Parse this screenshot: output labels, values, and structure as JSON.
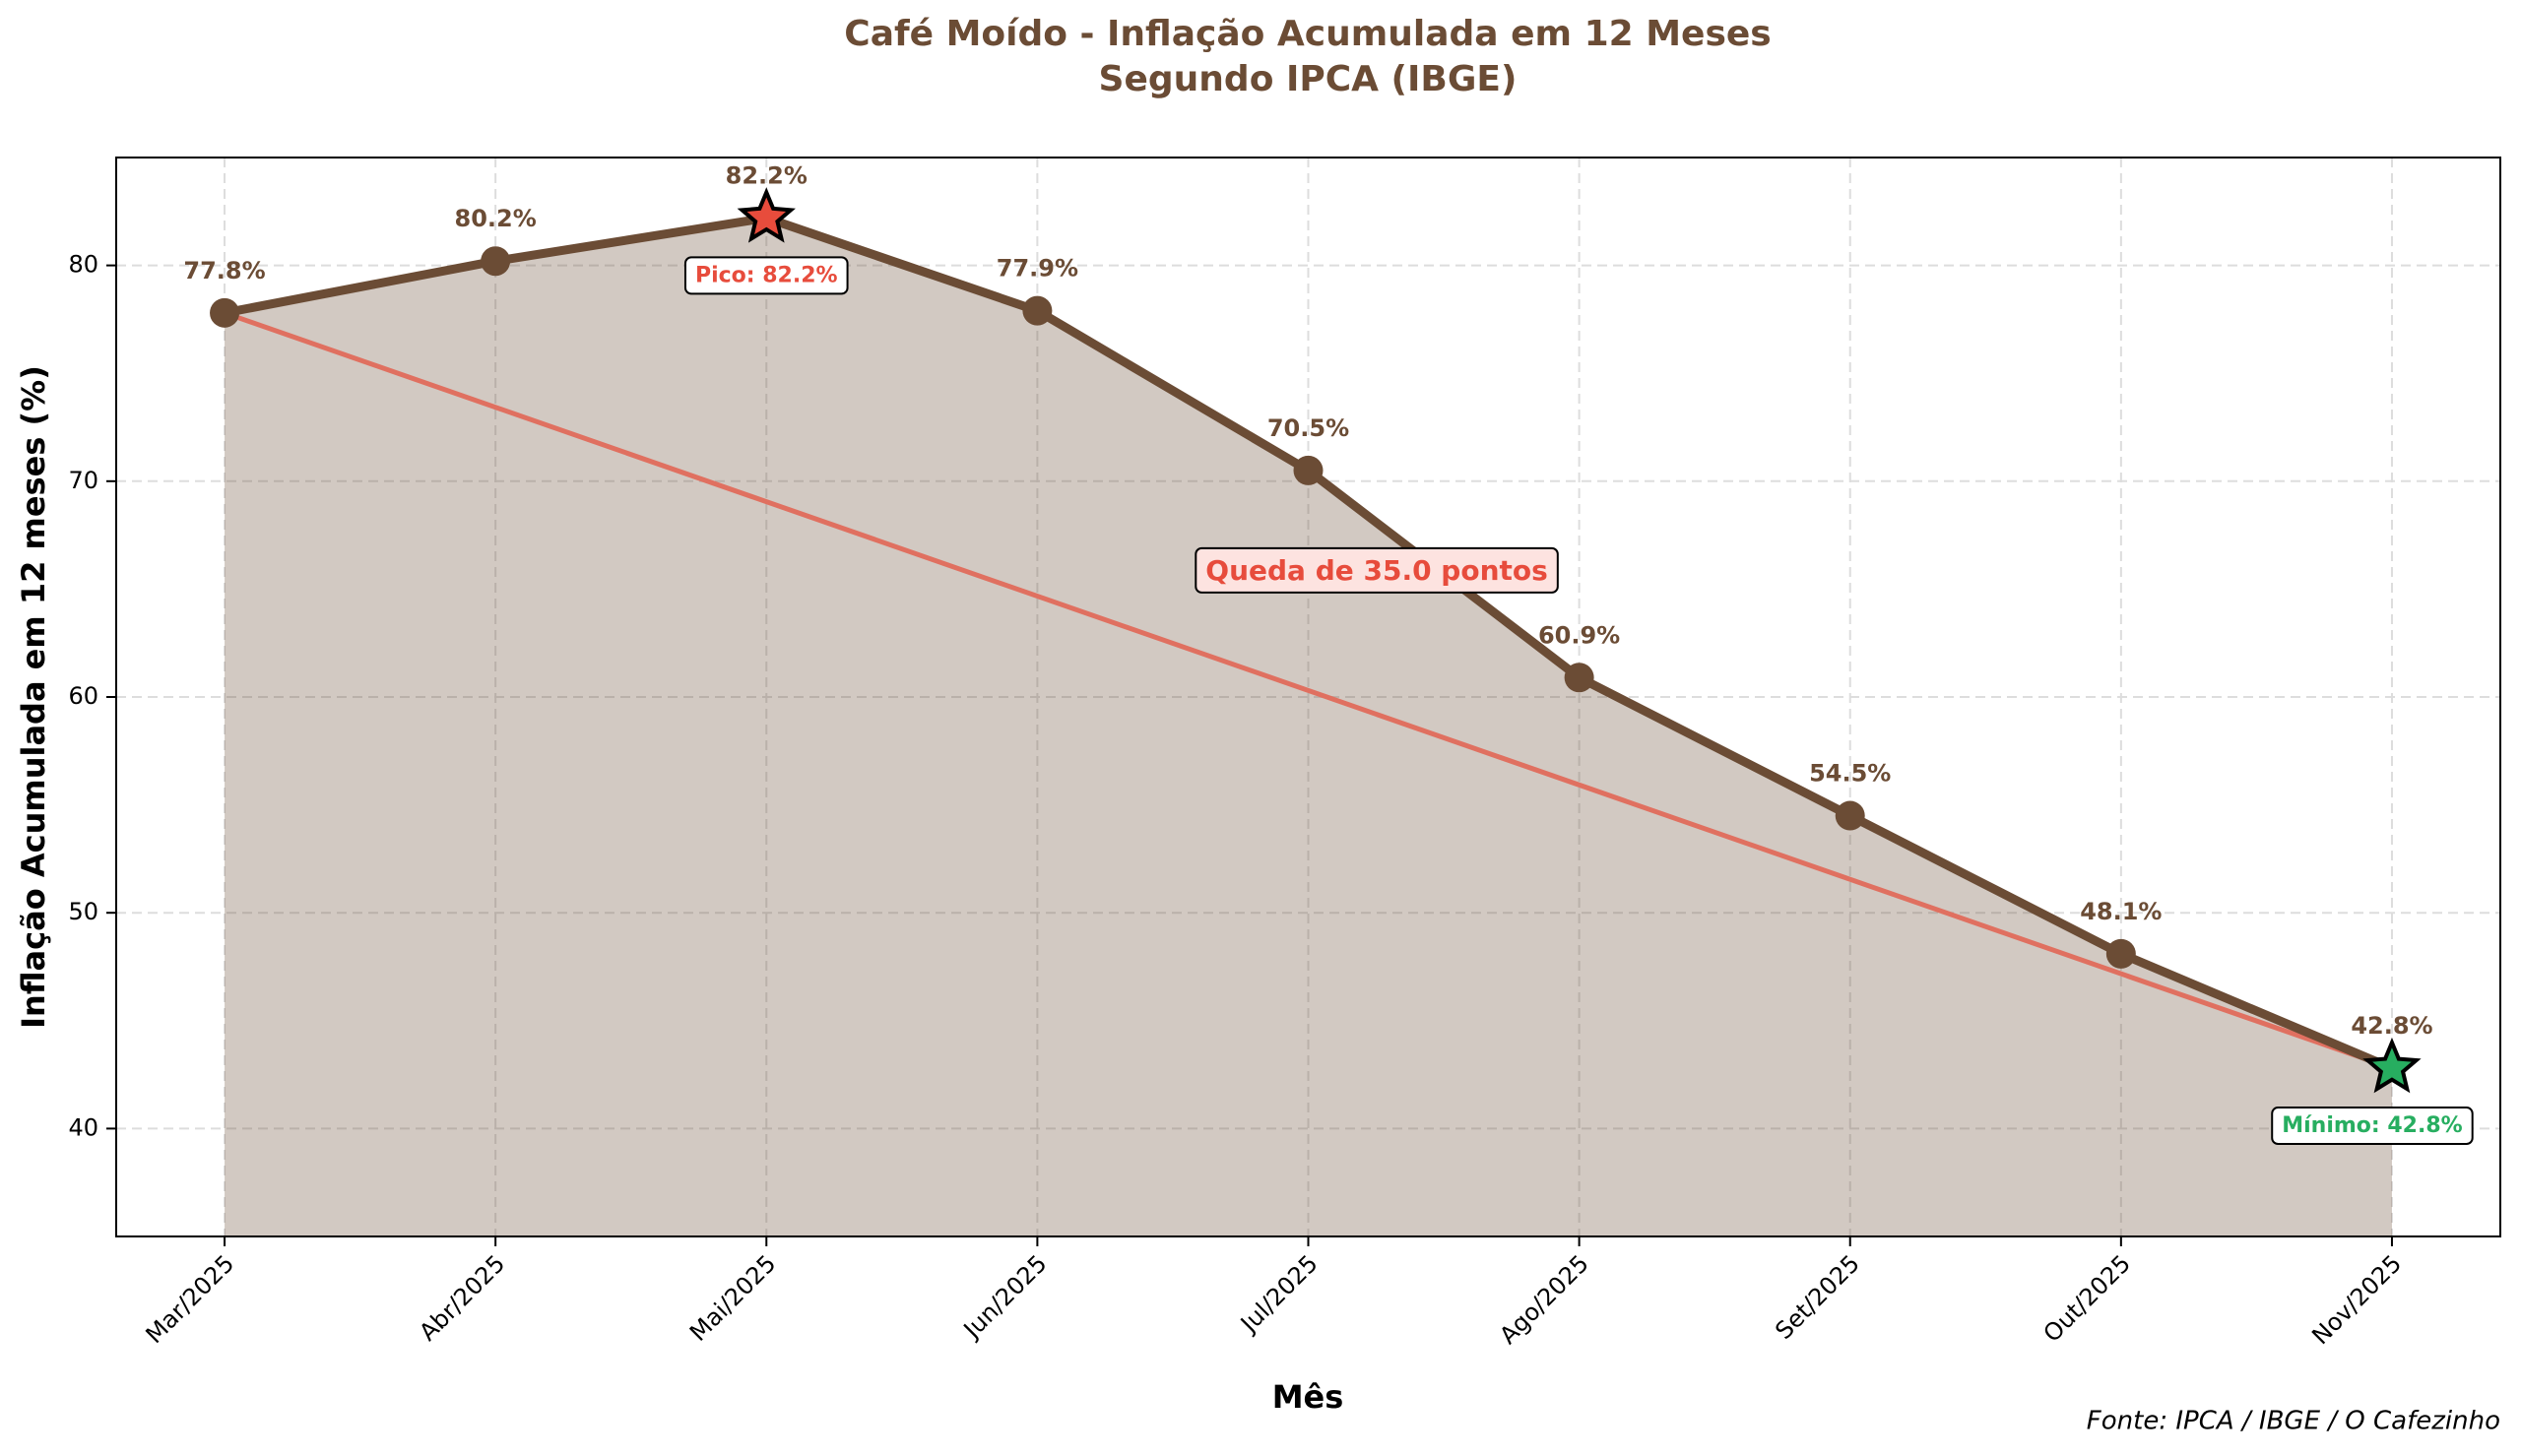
{
  "chart_data": {
    "type": "line",
    "title": "Café Moído - Inflação Acumulada em 12 Meses",
    "subtitle": "Segundo IPCA (IBGE)",
    "x_label": "Mês",
    "y_label": "Inflação Acumulada em 12 meses (%)",
    "source": "Fonte: IPCA / IBGE / O Cafezinho",
    "categories": [
      "Mar/2025",
      "Abr/2025",
      "Mai/2025",
      "Jun/2025",
      "Jul/2025",
      "Ago/2025",
      "Set/2025",
      "Out/2025",
      "Nov/2025"
    ],
    "series": [
      {
        "name": "Café Moído",
        "color": "#6b4c35",
        "values": [
          77.8,
          80.2,
          82.2,
          77.9,
          70.5,
          60.9,
          54.5,
          48.1,
          42.8
        ],
        "value_labels": [
          "77.8%",
          "80.2%",
          "82.2%",
          "77.9%",
          "70.5%",
          "60.9%",
          "54.5%",
          "48.1%",
          "42.8%"
        ]
      }
    ],
    "trend_color": "#e07060",
    "peak": {
      "index": 2,
      "label": "Pico: 82.2%",
      "color": "#e74c3c"
    },
    "minimum": {
      "index": 8,
      "label": "Mínimo: 42.8%",
      "color": "#27ae60"
    },
    "drop_label": "Queda de 35.0 pontos",
    "ylim": [
      35,
      85
    ],
    "yticks": [
      40,
      50,
      60,
      70,
      80
    ],
    "grid": true
  }
}
